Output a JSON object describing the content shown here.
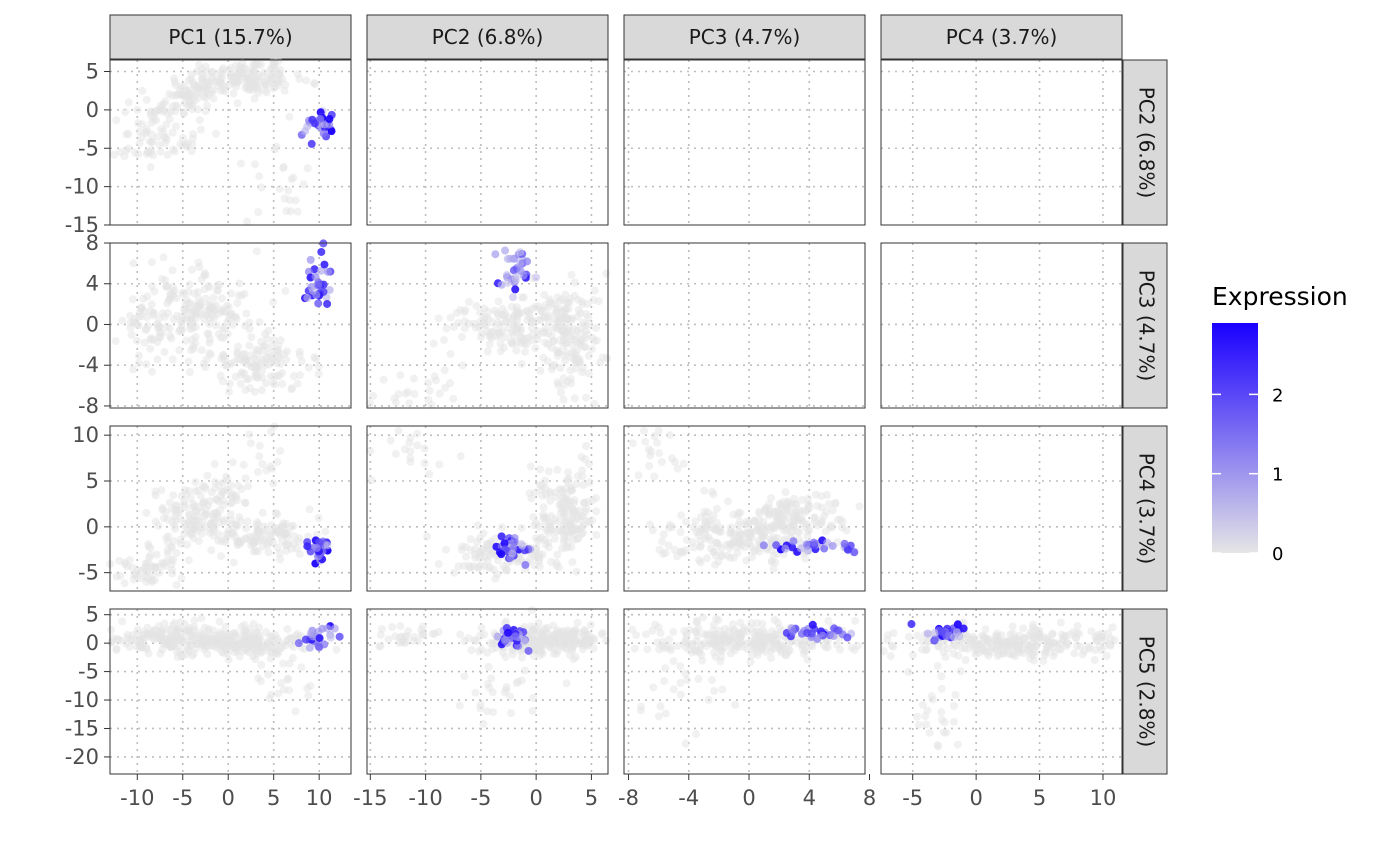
{
  "chart_data": {
    "type": "scatter",
    "layout": "pairs-matrix",
    "columns": [
      {
        "label": "PC1 (15.7%)",
        "xlim": [
          -13,
          13.5
        ],
        "ticks": [
          -10,
          -5,
          0,
          5,
          10
        ]
      },
      {
        "label": "PC2 (6.8%)",
        "xlim": [
          -15.3,
          6.5
        ],
        "ticks": [
          -15,
          -10,
          -5,
          0,
          5
        ]
      },
      {
        "label": "PC3 (4.7%)",
        "xlim": [
          -8.3,
          7.7
        ],
        "ticks": [
          -8,
          -4,
          0,
          4,
          8
        ]
      },
      {
        "label": "PC4 (3.7%)",
        "xlim": [
          -7.5,
          11.5
        ],
        "ticks": [
          -5,
          0,
          5,
          10
        ]
      }
    ],
    "rows": [
      {
        "label": "PC2 (6.8%)",
        "ylim": [
          -15,
          6.5
        ],
        "ticks": [
          5,
          0,
          -5,
          -10,
          -15
        ],
        "tick_labels": [
          "5",
          "0",
          "-5",
          "-10",
          "-15"
        ]
      },
      {
        "label": "PC3 (4.7%)",
        "ylim": [
          -8.2,
          8
        ],
        "ticks": [
          8,
          4,
          0,
          -4,
          -8
        ],
        "tick_labels": [
          "8",
          "4",
          "0",
          "-4",
          "-8"
        ]
      },
      {
        "label": "PC4 (3.7%)",
        "ylim": [
          -7,
          11
        ],
        "ticks": [
          10,
          5,
          0,
          -5
        ],
        "tick_labels": [
          "10",
          "5",
          "0",
          "-5"
        ]
      },
      {
        "label": "PC5 (2.8%)",
        "ylim": [
          -23,
          6
        ],
        "ticks": [
          5,
          0,
          -5,
          -10,
          -15,
          -20
        ],
        "tick_labels": [
          "5",
          "0",
          "-5",
          "-10",
          "-15",
          "-20"
        ]
      }
    ],
    "grid": true,
    "grid_style": "dotted",
    "legend": {
      "title": "Expression",
      "placement": "right",
      "scale": "continuous",
      "low_color": "#e5e5e5",
      "high_color": "#1a00ff",
      "range": [
        0,
        2.9
      ],
      "ticks": [
        0,
        1,
        2
      ],
      "tick_labels": [
        "0",
        "1",
        "2"
      ]
    },
    "groups": {
      "pc1_pc2": [
        {
          "cx": -3,
          "cy": 2.5,
          "sx": 4,
          "sy": 2,
          "n": 160,
          "rho": 0.7
        },
        {
          "cx": 3,
          "cy": 4,
          "sx": 2.5,
          "sy": 1,
          "n": 80,
          "rho": 0
        },
        {
          "cx": -8,
          "cy": -4,
          "sx": 2.5,
          "sy": 1.5,
          "n": 60,
          "rho": 0.3
        },
        {
          "cx": 5,
          "cy": -10,
          "sx": 2,
          "sy": 3,
          "n": 25,
          "rho": 0
        }
      ],
      "pc1_pc3": [
        {
          "cx": -4,
          "cy": 1.5,
          "sx": 3.5,
          "sy": 2,
          "n": 180,
          "rho": 0
        },
        {
          "cx": 3,
          "cy": -4,
          "sx": 3,
          "sy": 1.5,
          "n": 120,
          "rho": 0
        },
        {
          "cx": -9,
          "cy": -1,
          "sx": 2,
          "sy": 1.5,
          "n": 40,
          "rho": 0
        }
      ],
      "pc1_pc4": [
        {
          "cx": -3,
          "cy": 2,
          "sx": 3,
          "sy": 2.5,
          "n": 160,
          "rho": 0.5
        },
        {
          "cx": 4,
          "cy": -1,
          "sx": 3,
          "sy": 1,
          "n": 120,
          "rho": 0
        },
        {
          "cx": -9,
          "cy": -4.5,
          "sx": 2,
          "sy": 1,
          "n": 50,
          "rho": 0
        },
        {
          "cx": 4,
          "cy": 8,
          "sx": 1,
          "sy": 1.5,
          "n": 15,
          "rho": 0
        }
      ],
      "pc1_pc5": [
        {
          "cx": -5,
          "cy": 0.5,
          "sx": 4,
          "sy": 1.2,
          "n": 200,
          "rho": 0
        },
        {
          "cx": 2,
          "cy": 0,
          "sx": 3,
          "sy": 1.3,
          "n": 150,
          "rho": 0
        },
        {
          "cx": 6,
          "cy": -7,
          "sx": 1.5,
          "sy": 3,
          "n": 20,
          "rho": 0
        }
      ],
      "pc2_pc3": [
        {
          "cx": 3,
          "cy": -1,
          "sx": 1.5,
          "sy": 3,
          "n": 160,
          "rho": 0
        },
        {
          "cx": -3,
          "cy": 0,
          "sx": 3,
          "sy": 1.5,
          "n": 140,
          "rho": 0
        },
        {
          "cx": -12,
          "cy": -6,
          "sx": 2.5,
          "sy": 1.2,
          "n": 25,
          "rho": 0
        }
      ],
      "pc2_pc4": [
        {
          "cx": 2.5,
          "cy": 1.5,
          "sx": 1.5,
          "sy": 2.5,
          "n": 160,
          "rho": 0
        },
        {
          "cx": -3,
          "cy": -3,
          "sx": 2.5,
          "sy": 1.2,
          "n": 120,
          "rho": 0
        },
        {
          "cx": -12,
          "cy": 8,
          "sx": 2,
          "sy": 1.5,
          "n": 20,
          "rho": 0
        }
      ],
      "pc2_pc5": [
        {
          "cx": 1,
          "cy": 0.5,
          "sx": 3,
          "sy": 1.3,
          "n": 250,
          "rho": 0
        },
        {
          "cx": -12,
          "cy": 1.5,
          "sx": 2,
          "sy": 1,
          "n": 30,
          "rho": 0
        },
        {
          "cx": -3,
          "cy": -9,
          "sx": 2,
          "sy": 4,
          "n": 25,
          "rho": 0
        }
      ],
      "pc3_pc4": [
        {
          "cx": 0,
          "cy": -1,
          "sx": 3,
          "sy": 1.5,
          "n": 250,
          "rho": 0.2
        },
        {
          "cx": 3,
          "cy": 1.5,
          "sx": 2,
          "sy": 1,
          "n": 80,
          "rho": 0
        },
        {
          "cx": -6,
          "cy": 8,
          "sx": 1,
          "sy": 1.5,
          "n": 20,
          "rho": 0
        }
      ],
      "pc3_pc5": [
        {
          "cx": 0,
          "cy": 0.5,
          "sx": 3.5,
          "sy": 1.5,
          "n": 260,
          "rho": 0
        },
        {
          "cx": -4,
          "cy": -8,
          "sx": 1.5,
          "sy": 4,
          "n": 25,
          "rho": 0
        }
      ],
      "pc4_pc5": [
        {
          "cx": 3,
          "cy": 0,
          "sx": 4,
          "sy": 1.5,
          "n": 260,
          "rho": 0
        },
        {
          "cx": -3,
          "cy": -10,
          "sx": 1,
          "sy": 4,
          "n": 25,
          "rho": 0
        }
      ]
    },
    "highlight": {
      "pc1_pc2": {
        "cx": 10,
        "cy": -2,
        "sx": 0.9,
        "sy": 1
      },
      "pc1_pc3": {
        "cx": 10,
        "cy": 4,
        "sx": 0.7,
        "sy": 1.5
      },
      "pc1_pc4": {
        "cx": 10,
        "cy": -2.5,
        "sx": 0.8,
        "sy": 0.8
      },
      "pc1_pc5": {
        "cx": 10,
        "cy": 1,
        "sx": 0.8,
        "sy": 1
      },
      "pc2_pc3": {
        "cx": -2,
        "cy": 5,
        "sx": 0.8,
        "sy": 1
      },
      "pc2_pc4": {
        "cx": -2,
        "cy": -2.5,
        "sx": 0.8,
        "sy": 0.7
      },
      "pc2_pc5": {
        "cx": -2,
        "cy": 1,
        "sx": 0.8,
        "sy": 0.8
      },
      "pc3_pc4": {
        "cx": 4.5,
        "cy": -2,
        "sx": 1.4,
        "sy": 0.5
      },
      "pc3_pc5": {
        "cx": 4.5,
        "cy": 2,
        "sx": 1.4,
        "sy": 0.5
      },
      "pc4_pc5": {
        "cx": -2.5,
        "cy": 1.5,
        "sx": 0.8,
        "sy": 0.8
      }
    },
    "highlight_n": 30,
    "point_alpha": 0.5
  }
}
